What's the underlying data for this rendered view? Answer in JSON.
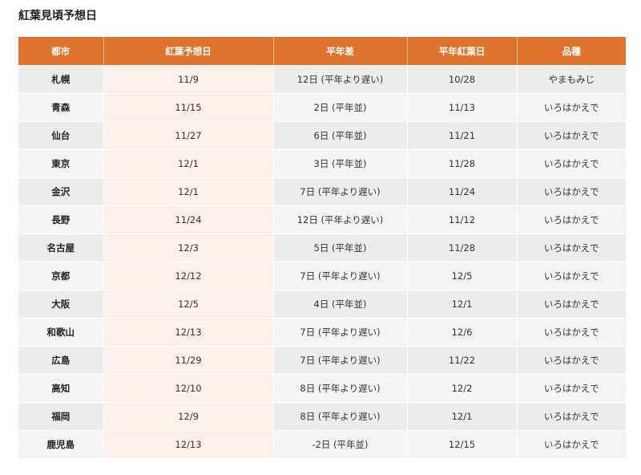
{
  "title": "紅葉見頃予想日",
  "colors": {
    "header": "#e0742c",
    "highlight_column": "#fdf0e8"
  },
  "table": {
    "headers": [
      "都市",
      "紅葉予想日",
      "平年差",
      "平年紅葉日",
      "品種"
    ],
    "rows": [
      [
        "札幌",
        "11/9",
        "12日 (平年より遅い)",
        "10/28",
        "やまもみじ"
      ],
      [
        "青森",
        "11/15",
        "2日 (平年並)",
        "11/13",
        "いろはかえで"
      ],
      [
        "仙台",
        "11/27",
        "6日 (平年並)",
        "11/21",
        "いろはかえで"
      ],
      [
        "東京",
        "12/1",
        "3日 (平年並)",
        "11/28",
        "いろはかえで"
      ],
      [
        "金沢",
        "12/1",
        "7日 (平年より遅い)",
        "11/24",
        "いろはかえで"
      ],
      [
        "長野",
        "11/24",
        "12日 (平年より遅い)",
        "11/12",
        "いろはかえで"
      ],
      [
        "名古屋",
        "12/3",
        "5日 (平年並)",
        "11/28",
        "いろはかえで"
      ],
      [
        "京都",
        "12/12",
        "7日 (平年より遅い)",
        "12/5",
        "いろはかえで"
      ],
      [
        "大阪",
        "12/5",
        "4日 (平年並)",
        "12/1",
        "いろはかえで"
      ],
      [
        "和歌山",
        "12/13",
        "7日 (平年より遅い)",
        "12/6",
        "いろはかえで"
      ],
      [
        "広島",
        "11/29",
        "7日 (平年より遅い)",
        "11/22",
        "いろはかえで"
      ],
      [
        "高知",
        "12/10",
        "8日 (平年より遅い)",
        "12/2",
        "いろはかえで"
      ],
      [
        "福岡",
        "12/9",
        "8日 (平年より遅い)",
        "12/1",
        "いろはかえで"
      ],
      [
        "鹿児島",
        "12/13",
        "-2日 (平年並)",
        "12/15",
        "いろはかえで"
      ]
    ]
  }
}
